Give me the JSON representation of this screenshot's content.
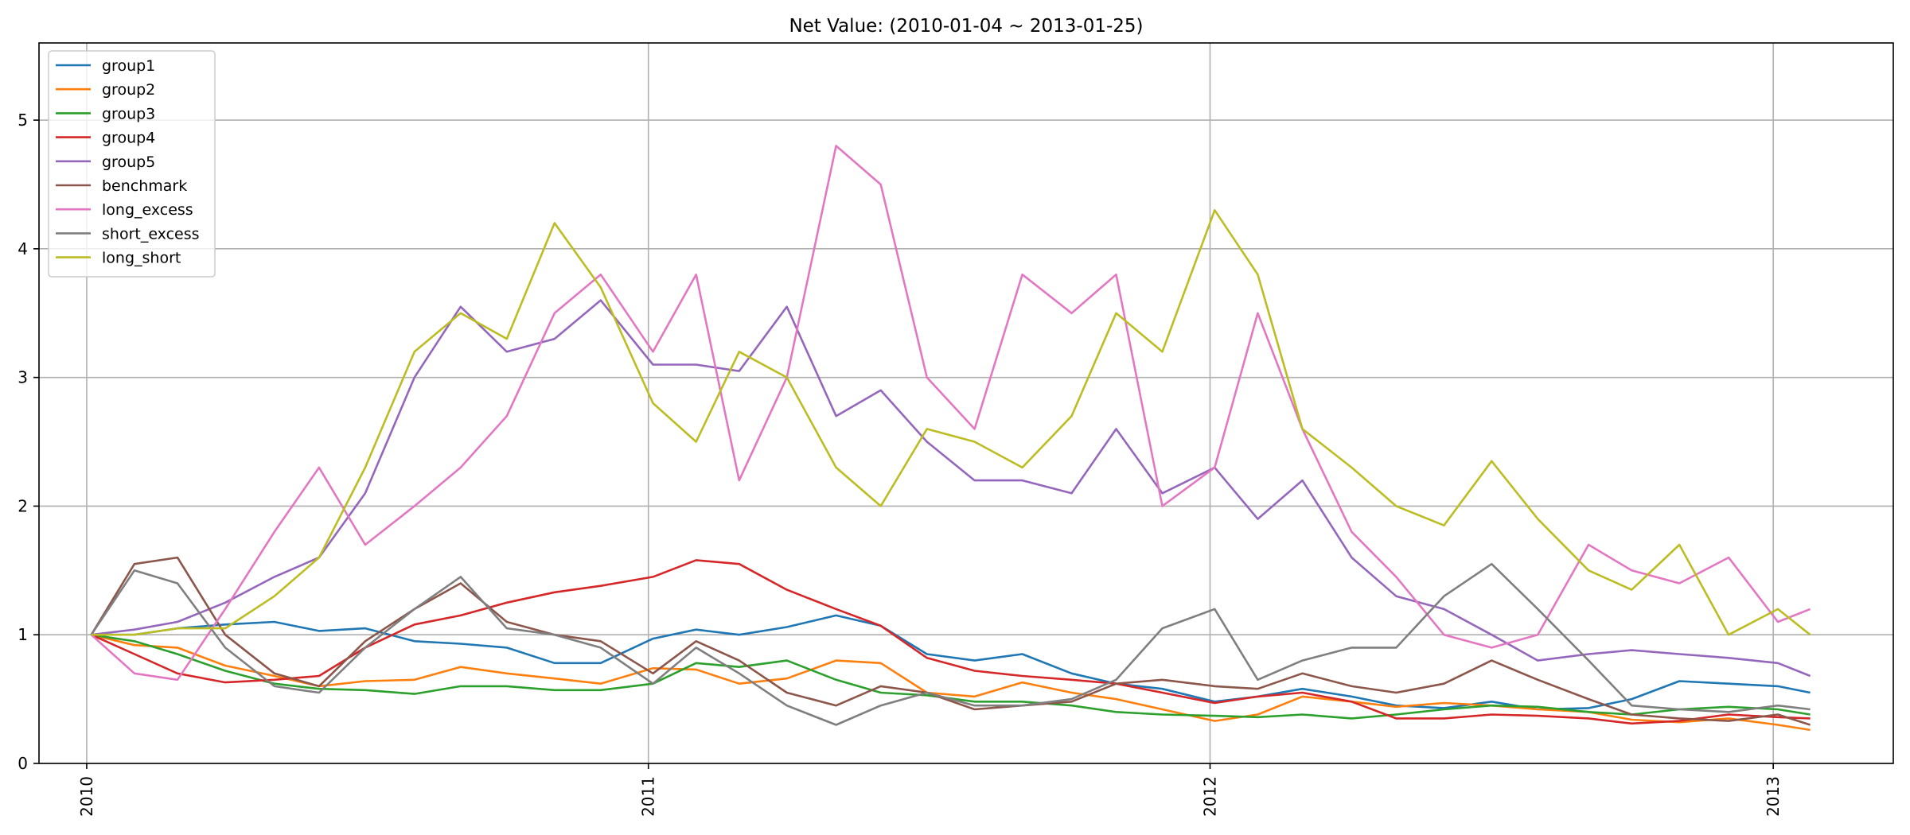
{
  "chart_data": {
    "type": "line",
    "title": "Net Value: (2010-01-04 ~ 2013-01-25)",
    "xlabel": "",
    "ylabel": "",
    "xlim": [
      "2009-12-01",
      "2013-03-20"
    ],
    "ylim": [
      0,
      5.6
    ],
    "x_ticks": [
      "2010",
      "2011",
      "2012",
      "2013"
    ],
    "y_ticks": [
      0,
      1,
      2,
      3,
      4,
      5
    ],
    "grid": true,
    "legend_position": "top-left",
    "x": [
      "2010-01-04",
      "2010-02-01",
      "2010-03-01",
      "2010-04-01",
      "2010-05-03",
      "2010-06-01",
      "2010-07-01",
      "2010-08-02",
      "2010-09-01",
      "2010-10-01",
      "2010-11-01",
      "2010-12-01",
      "2011-01-04",
      "2011-02-01",
      "2011-03-01",
      "2011-04-01",
      "2011-05-03",
      "2011-06-01",
      "2011-07-01",
      "2011-08-01",
      "2011-09-01",
      "2011-10-03",
      "2011-11-01",
      "2011-12-01",
      "2012-01-04",
      "2012-02-01",
      "2012-03-01",
      "2012-04-02",
      "2012-05-01",
      "2012-06-01",
      "2012-07-02",
      "2012-08-01",
      "2012-09-03",
      "2012-10-01",
      "2012-11-01",
      "2012-12-03",
      "2013-01-04",
      "2013-01-25"
    ],
    "series": [
      {
        "name": "group1",
        "color": "#1f77b4",
        "values": [
          1.0,
          1.0,
          1.05,
          1.08,
          1.1,
          1.03,
          1.05,
          0.95,
          0.93,
          0.9,
          0.78,
          0.78,
          0.97,
          1.04,
          1.0,
          1.06,
          1.15,
          1.07,
          0.85,
          0.8,
          0.85,
          0.7,
          0.62,
          0.58,
          0.48,
          0.52,
          0.58,
          0.52,
          0.45,
          0.43,
          0.48,
          0.42,
          0.43,
          0.5,
          0.64,
          0.62,
          0.6,
          0.55
        ]
      },
      {
        "name": "group2",
        "color": "#ff7f0e",
        "values": [
          1.0,
          0.92,
          0.9,
          0.76,
          0.68,
          0.6,
          0.64,
          0.65,
          0.75,
          0.7,
          0.66,
          0.62,
          0.74,
          0.73,
          0.62,
          0.66,
          0.8,
          0.78,
          0.55,
          0.52,
          0.63,
          0.55,
          0.5,
          0.42,
          0.33,
          0.38,
          0.52,
          0.48,
          0.44,
          0.47,
          0.45,
          0.42,
          0.4,
          0.34,
          0.32,
          0.35,
          0.3,
          0.26
        ]
      },
      {
        "name": "group3",
        "color": "#2ca02c",
        "values": [
          1.0,
          0.95,
          0.85,
          0.72,
          0.62,
          0.58,
          0.57,
          0.54,
          0.6,
          0.6,
          0.57,
          0.57,
          0.62,
          0.78,
          0.75,
          0.8,
          0.65,
          0.55,
          0.53,
          0.48,
          0.48,
          0.45,
          0.4,
          0.38,
          0.37,
          0.36,
          0.38,
          0.35,
          0.38,
          0.42,
          0.45,
          0.44,
          0.4,
          0.38,
          0.42,
          0.44,
          0.42,
          0.38
        ]
      },
      {
        "name": "group4",
        "color": "#d62728",
        "values": [
          1.0,
          0.85,
          0.7,
          0.63,
          0.65,
          0.68,
          0.9,
          1.08,
          1.15,
          1.25,
          1.33,
          1.38,
          1.45,
          1.58,
          1.55,
          1.35,
          1.2,
          1.07,
          0.82,
          0.72,
          0.68,
          0.65,
          0.62,
          0.55,
          0.47,
          0.52,
          0.55,
          0.48,
          0.35,
          0.35,
          0.38,
          0.37,
          0.35,
          0.31,
          0.33,
          0.38,
          0.36,
          0.35
        ]
      },
      {
        "name": "group5",
        "color": "#9467bd",
        "values": [
          1.0,
          1.04,
          1.1,
          1.25,
          1.45,
          1.6,
          2.1,
          3.0,
          3.55,
          3.2,
          3.3,
          3.6,
          3.1,
          3.1,
          3.05,
          3.55,
          2.7,
          2.9,
          2.5,
          2.2,
          2.2,
          2.1,
          2.6,
          2.1,
          2.3,
          1.9,
          2.2,
          1.6,
          1.3,
          1.2,
          1.0,
          0.8,
          0.85,
          0.88,
          0.85,
          0.82,
          0.78,
          0.68
        ]
      },
      {
        "name": "benchmark",
        "color": "#8c564b",
        "values": [
          1.0,
          1.55,
          1.6,
          1.0,
          0.7,
          0.6,
          0.95,
          1.2,
          1.4,
          1.1,
          1.0,
          0.95,
          0.7,
          0.95,
          0.8,
          0.55,
          0.45,
          0.6,
          0.55,
          0.42,
          0.45,
          0.48,
          0.62,
          0.65,
          0.6,
          0.58,
          0.7,
          0.6,
          0.55,
          0.62,
          0.8,
          0.65,
          0.5,
          0.38,
          0.35,
          0.33,
          0.38,
          0.3
        ]
      },
      {
        "name": "long_excess",
        "color": "#e377c2",
        "values": [
          1.0,
          0.7,
          0.65,
          1.2,
          1.8,
          2.3,
          1.7,
          2.0,
          2.3,
          2.7,
          3.5,
          3.8,
          3.2,
          3.8,
          2.2,
          3.0,
          4.8,
          4.5,
          3.0,
          2.6,
          3.8,
          3.5,
          3.8,
          2.0,
          2.3,
          3.5,
          2.6,
          1.8,
          1.45,
          1.0,
          0.9,
          1.0,
          1.7,
          1.5,
          1.4,
          1.6,
          1.1,
          1.2
        ]
      },
      {
        "name": "short_excess",
        "color": "#7f7f7f",
        "values": [
          1.0,
          1.5,
          1.4,
          0.9,
          0.6,
          0.55,
          0.9,
          1.2,
          1.45,
          1.05,
          1.0,
          0.9,
          0.62,
          0.9,
          0.7,
          0.45,
          0.3,
          0.45,
          0.55,
          0.45,
          0.45,
          0.5,
          0.65,
          1.05,
          1.2,
          0.65,
          0.8,
          0.9,
          0.9,
          1.3,
          1.55,
          1.2,
          0.8,
          0.45,
          0.42,
          0.4,
          0.45,
          0.42
        ]
      },
      {
        "name": "long_short",
        "color": "#bcbd22",
        "values": [
          1.0,
          1.0,
          1.05,
          1.05,
          1.3,
          1.6,
          2.3,
          3.2,
          3.5,
          3.3,
          4.2,
          3.7,
          2.8,
          2.5,
          3.2,
          3.0,
          2.3,
          2.0,
          2.6,
          2.5,
          2.3,
          2.7,
          3.5,
          3.2,
          4.3,
          3.8,
          2.6,
          2.3,
          2.0,
          1.85,
          2.35,
          1.9,
          1.5,
          1.35,
          1.7,
          1.0,
          1.2,
          1.0
        ]
      }
    ]
  }
}
